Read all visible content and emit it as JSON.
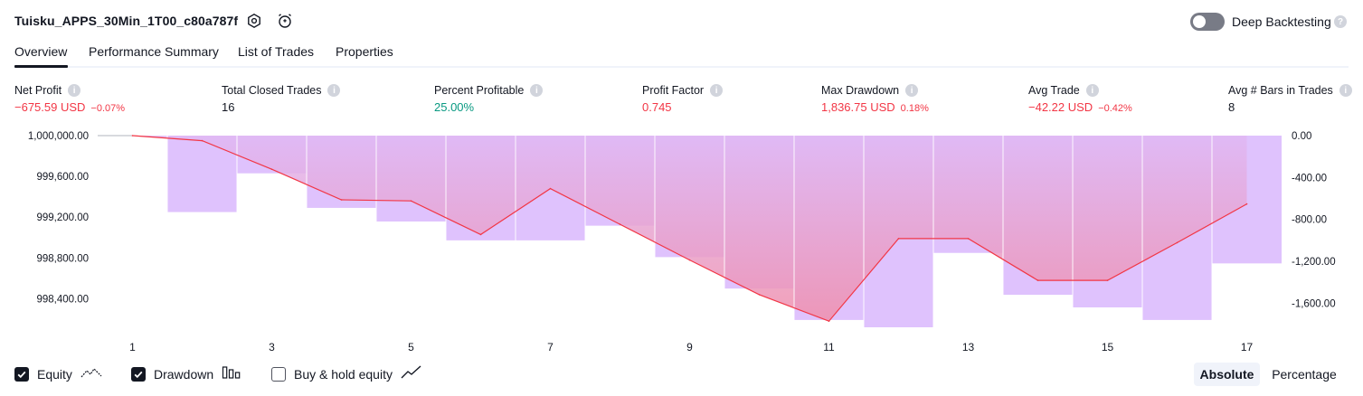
{
  "header": {
    "title": "Tuisku_APPS_30Min_1T00_c80a787f",
    "settings_icon": "gear-icon",
    "alert_icon": "alarm-clock-plus-icon",
    "deep_backtesting_label": "Deep Backtesting",
    "deep_backtesting_enabled": false,
    "help_icon": "question-icon",
    "help_glyph": "?"
  },
  "tabs": [
    {
      "label": "Overview",
      "active": true
    },
    {
      "label": "Performance Summary",
      "active": false
    },
    {
      "label": "List of Trades",
      "active": false
    },
    {
      "label": "Properties",
      "active": false
    }
  ],
  "stats": [
    {
      "label": "Net Profit",
      "value": "−675.59 USD",
      "pct": "−0.07%",
      "tone": "neg"
    },
    {
      "label": "Total Closed Trades",
      "value": "16",
      "pct": "",
      "tone": ""
    },
    {
      "label": "Percent Profitable",
      "value": "25.00%",
      "pct": "",
      "tone": "pos"
    },
    {
      "label": "Profit Factor",
      "value": "0.745",
      "pct": "",
      "tone": "neg"
    },
    {
      "label": "Max Drawdown",
      "value": "1,836.75 USD",
      "pct": "0.18%",
      "tone": "neg"
    },
    {
      "label": "Avg Trade",
      "value": "−42.22 USD",
      "pct": "−0.42%",
      "tone": "neg"
    },
    {
      "label": "Avg # Bars in Trades",
      "value": "8",
      "pct": "",
      "tone": ""
    }
  ],
  "info_icon": {
    "name": "info-icon",
    "glyph": "i"
  },
  "chart_data": {
    "type": "line",
    "x": [
      1,
      2,
      3,
      4,
      5,
      6,
      7,
      8,
      9,
      10,
      11,
      12,
      13,
      14,
      15,
      16,
      17
    ],
    "x_tick_labels": [
      "1",
      "3",
      "5",
      "7",
      "9",
      "11",
      "13",
      "15",
      "17"
    ],
    "series": [
      {
        "type": "line",
        "axis": "left",
        "values": [
          1000000,
          999950,
          999670,
          999370,
          999360,
          999030,
          999480,
          999130,
          998780,
          998440,
          998180,
          998990,
          998990,
          998580,
          998580,
          998950,
          999330
        ]
      },
      {
        "type": "bar",
        "axis": "right",
        "values": [
          0,
          -730,
          -360,
          -690,
          -820,
          -1000,
          -1000,
          -860,
          -1160,
          -1460,
          -1760,
          -1830,
          -1120,
          -1520,
          -1640,
          -1760,
          -1220
        ]
      }
    ],
    "left_axis": {
      "min": 998120,
      "max": 1000000,
      "ticks": [
        1000000,
        999600,
        999200,
        998800,
        998400
      ],
      "tick_labels": [
        "1,000,000.00",
        "999,600.00",
        "999,200.00",
        "998,800.00",
        "998,400.00"
      ]
    },
    "right_axis": {
      "min": -1830,
      "max": 0,
      "ticks": [
        0,
        -400,
        -800,
        -1200,
        -1600
      ],
      "tick_labels": [
        "0.00",
        "-400.00",
        "-800.00",
        "-1,200.00",
        "-1,600.00"
      ]
    },
    "colors": {
      "equity_line": "#f23645",
      "drawdown_bar": "#dfc2fd",
      "equity_fill_top": "#e0b8f4",
      "equity_fill_bottom": "#ef8fac",
      "grid": "#ffffff"
    }
  },
  "legend": [
    {
      "label": "Equity",
      "checked": true,
      "icon": "equity-line-icon"
    },
    {
      "label": "Drawdown",
      "checked": true,
      "icon": "drawdown-bars-icon"
    },
    {
      "label": "Buy & hold equity",
      "checked": false,
      "icon": "trend-line-icon"
    }
  ],
  "view_modes": [
    {
      "label": "Absolute",
      "active": true
    },
    {
      "label": "Percentage",
      "active": false
    }
  ]
}
